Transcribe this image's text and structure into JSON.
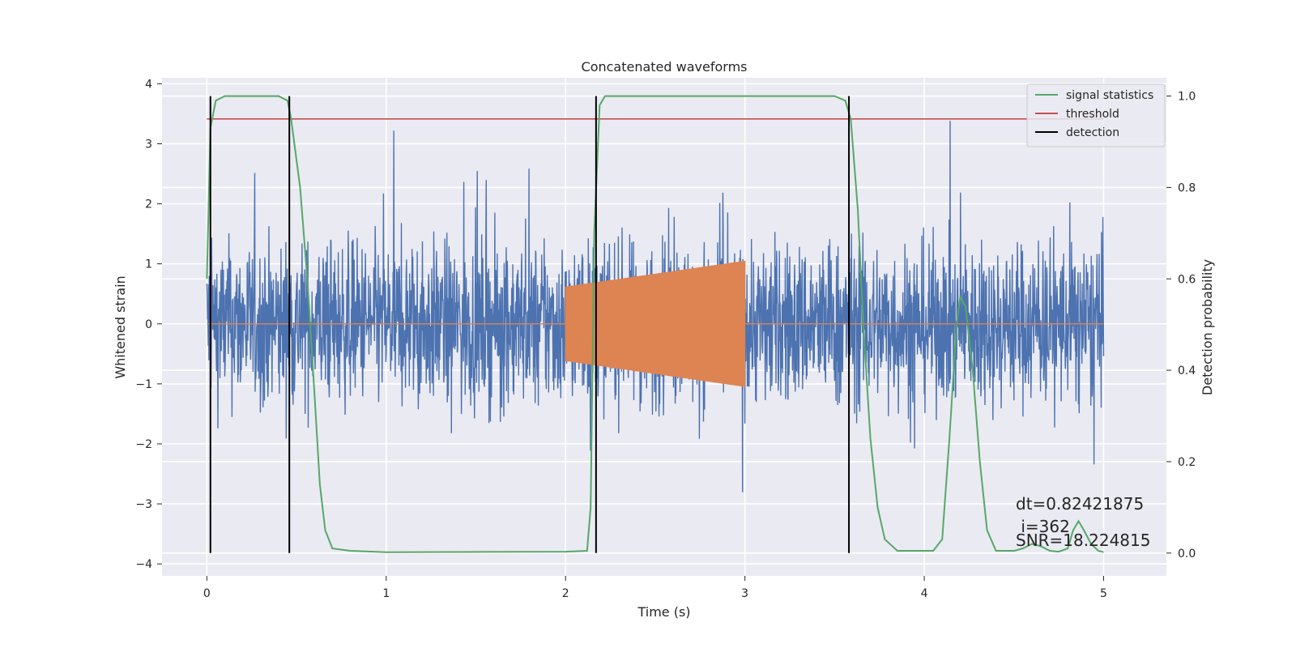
{
  "chart_data": {
    "type": "line",
    "title": "Concatenated waveforms",
    "xlabel": "Time (s)",
    "ylabel": "Whitened strain",
    "y2label": "Detection probability",
    "xlim": [
      -0.25,
      5.35
    ],
    "ylim": [
      -4.2,
      4.1
    ],
    "y2lim": [
      -0.05,
      1.04
    ],
    "xticks": [
      0,
      1,
      2,
      3,
      4,
      5
    ],
    "yticks": [
      -4,
      -3,
      -2,
      -1,
      0,
      1,
      2,
      3,
      4
    ],
    "y2ticks": [
      0.0,
      0.2,
      0.4,
      0.6,
      0.8,
      1.0
    ],
    "xticklabels": [
      "0",
      "1",
      "2",
      "3",
      "4",
      "5"
    ],
    "yticklabels": [
      "−4",
      "−3",
      "−2",
      "−1",
      "0",
      "1",
      "2",
      "3",
      "4"
    ],
    "y2ticklabels": [
      "0.0",
      "0.2",
      "0.4",
      "0.6",
      "0.8",
      "1.0"
    ],
    "grid": true,
    "legend_position": "top-right",
    "legend": [
      {
        "label": "signal statistics",
        "color": "#55a868"
      },
      {
        "label": "threshold",
        "color": "#c44e52"
      },
      {
        "label": "detection",
        "color": "#000000"
      }
    ],
    "noise": {
      "color": "#4c72b0",
      "x_range": [
        0,
        5
      ],
      "typical_abs_max": 2.5,
      "peak_abs_max": 3.7
    },
    "injected_signal": {
      "color": "#dd8452",
      "x_range": [
        2,
        3
      ],
      "amplitude_start": 0.62,
      "amplitude_end": 1.05
    },
    "signal_statistics": {
      "color": "#55a868",
      "axis": "right",
      "points": [
        [
          0,
          0.6
        ],
        [
          0.02,
          0.93
        ],
        [
          0.05,
          0.99
        ],
        [
          0.1,
          1.0
        ],
        [
          0.4,
          1.0
        ],
        [
          0.45,
          0.99
        ],
        [
          0.47,
          0.95
        ],
        [
          0.52,
          0.8
        ],
        [
          0.56,
          0.6
        ],
        [
          0.6,
          0.35
        ],
        [
          0.63,
          0.15
        ],
        [
          0.66,
          0.05
        ],
        [
          0.7,
          0.01
        ],
        [
          0.8,
          0.005
        ],
        [
          1.0,
          0.002
        ],
        [
          2.0,
          0.003
        ],
        [
          2.12,
          0.005
        ],
        [
          2.14,
          0.1
        ],
        [
          2.16,
          0.7
        ],
        [
          2.19,
          0.98
        ],
        [
          2.22,
          1.0
        ],
        [
          3.5,
          1.0
        ],
        [
          3.56,
          0.99
        ],
        [
          3.59,
          0.95
        ],
        [
          3.63,
          0.75
        ],
        [
          3.66,
          0.5
        ],
        [
          3.7,
          0.25
        ],
        [
          3.74,
          0.1
        ],
        [
          3.78,
          0.03
        ],
        [
          3.85,
          0.005
        ],
        [
          4.05,
          0.005
        ],
        [
          4.1,
          0.03
        ],
        [
          4.14,
          0.25
        ],
        [
          4.18,
          0.5
        ],
        [
          4.2,
          0.56
        ],
        [
          4.23,
          0.54
        ],
        [
          4.27,
          0.4
        ],
        [
          4.31,
          0.2
        ],
        [
          4.35,
          0.05
        ],
        [
          4.4,
          0.005
        ],
        [
          4.5,
          0.005
        ],
        [
          4.55,
          0.01
        ],
        [
          4.6,
          0.02
        ],
        [
          4.65,
          0.015
        ],
        [
          4.7,
          0.005
        ],
        [
          4.75,
          0.003
        ],
        [
          4.8,
          0.01
        ],
        [
          4.83,
          0.05
        ],
        [
          4.86,
          0.07
        ],
        [
          4.89,
          0.05
        ],
        [
          4.93,
          0.02
        ],
        [
          4.97,
          0.005
        ],
        [
          5.0,
          0.002
        ]
      ]
    },
    "threshold": {
      "value": 0.95,
      "x_range": [
        0,
        5
      ],
      "color": "#c44e52"
    },
    "detections": {
      "color": "#000000",
      "x": [
        0.02,
        0.46,
        2.17,
        3.58
      ],
      "y2_range": [
        0.0,
        1.0
      ]
    },
    "annotations": [
      "dt=0.82421875",
      " i=362",
      "SNR=18.224815"
    ]
  }
}
